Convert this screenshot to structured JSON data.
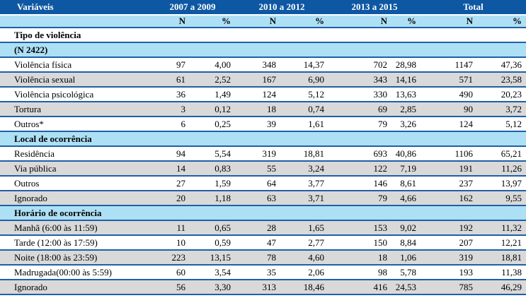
{
  "table": {
    "columns": {
      "variables_label": "Variáveis",
      "groups": [
        "2007 a 2009",
        "2010 a 2012",
        "2013 a 2015",
        "Total"
      ],
      "sub_headers": [
        "N",
        "%",
        "N",
        "%",
        "N",
        "%",
        "N",
        "%"
      ]
    },
    "rows": [
      {
        "kind": "section",
        "bg": "white",
        "label": "Tipo de violência"
      },
      {
        "kind": "section",
        "bg": "blue",
        "label": "(N 2422)"
      },
      {
        "kind": "data",
        "bg": "white",
        "label": "Violência física",
        "values": [
          "97",
          "4,00",
          "348",
          "14,37",
          "702",
          "28,98",
          "1147",
          "47,36"
        ]
      },
      {
        "kind": "data",
        "bg": "gray",
        "label": "Violência sexual",
        "values": [
          "61",
          "2,52",
          "167",
          "6,90",
          "343",
          "14,16",
          "571",
          "23,58"
        ]
      },
      {
        "kind": "data",
        "bg": "white",
        "label": "Violência psicológica",
        "values": [
          "36",
          "1,49",
          "124",
          "5,12",
          "330",
          "13,63",
          "490",
          "20,23"
        ]
      },
      {
        "kind": "data",
        "bg": "gray",
        "label": "Tortura",
        "values": [
          "3",
          "0,12",
          "18",
          "0,74",
          "69",
          "2,85",
          "90",
          "3,72"
        ]
      },
      {
        "kind": "data",
        "bg": "white",
        "label": "Outros*",
        "values": [
          "6",
          "0,25",
          "39",
          "1,61",
          "79",
          "3,26",
          "124",
          "5,12"
        ]
      },
      {
        "kind": "section",
        "bg": "blue",
        "label": "Local de ocorrência"
      },
      {
        "kind": "data",
        "bg": "white",
        "label": "Residência",
        "values": [
          "94",
          "5,54",
          "319",
          "18,81",
          "693",
          "40,86",
          "1106",
          "65,21"
        ]
      },
      {
        "kind": "data",
        "bg": "gray",
        "label": "Via pública",
        "values": [
          "14",
          "0,83",
          "55",
          "3,24",
          "122",
          "7,19",
          "191",
          "11,26"
        ]
      },
      {
        "kind": "data",
        "bg": "white",
        "label": "Outros",
        "values": [
          "27",
          "1,59",
          "64",
          "3,77",
          "146",
          "8,61",
          "237",
          "13,97"
        ]
      },
      {
        "kind": "data",
        "bg": "gray",
        "label": "Ignorado",
        "values": [
          "20",
          "1,18",
          "63",
          "3,71",
          "79",
          "4,66",
          "162",
          "9,55"
        ]
      },
      {
        "kind": "section",
        "bg": "blue",
        "label": "Horário de ocorrência"
      },
      {
        "kind": "data",
        "bg": "gray",
        "label": "Manhã (6:00 às 11:59)",
        "values": [
          "11",
          "0,65",
          "28",
          "1,65",
          "153",
          "9,02",
          "192",
          "11,32"
        ]
      },
      {
        "kind": "data",
        "bg": "white",
        "label": "Tarde (12:00 às 17:59)",
        "values": [
          "10",
          "0,59",
          "47",
          "2,77",
          "150",
          "8,84",
          "207",
          "12,21"
        ]
      },
      {
        "kind": "data",
        "bg": "gray",
        "label": "Noite (18:00 às 23:59)",
        "values": [
          "223",
          "13,15",
          "78",
          "4,60",
          "18",
          "1,06",
          "319",
          "18,81"
        ]
      },
      {
        "kind": "data",
        "bg": "white",
        "label": "Madrugada(00:00 às 5:59)",
        "values": [
          "60",
          "3,54",
          "35",
          "2,06",
          "98",
          "5,78",
          "193",
          "11,38"
        ]
      },
      {
        "kind": "data",
        "bg": "gray",
        "label": "Ignorado",
        "values": [
          "56",
          "3,30",
          "313",
          "18,46",
          "416",
          "24,53",
          "785",
          "46,29"
        ]
      }
    ],
    "colors": {
      "header_bg": "#0E57A3",
      "header_text": "#FFFFFF",
      "subheader_bg": "#AEE0F5",
      "section_blue_bg": "#AEE0F5",
      "row_alt_bg": "#D9D9D9",
      "border": "#1F5FA8",
      "text": "#000000"
    }
  }
}
